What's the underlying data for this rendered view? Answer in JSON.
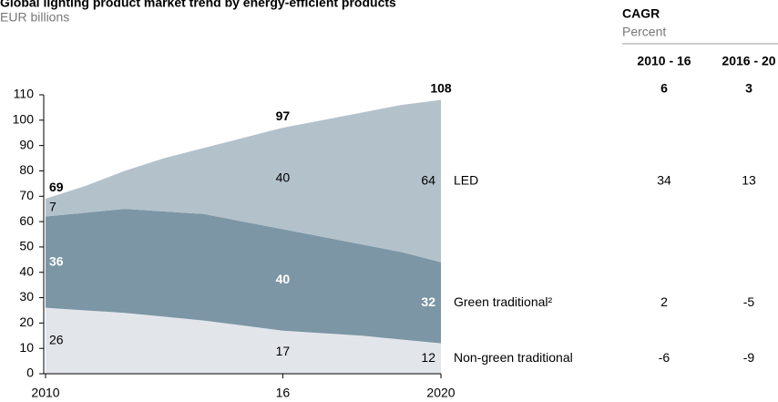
{
  "chart_data": {
    "type": "stacked_area",
    "title": "Global lighting product market trend by energy-efficient products",
    "subtitle": "EUR billions",
    "x": [
      2010,
      2011,
      2012,
      2013,
      2014,
      2015,
      2016,
      2017,
      2018,
      2019,
      2020
    ],
    "xlim": [
      2010,
      2020
    ],
    "xticks": [
      2010,
      {
        "value": 2016,
        "label": "16"
      },
      2020
    ],
    "ylim": [
      0,
      110
    ],
    "yticks": [
      0,
      10,
      20,
      30,
      40,
      50,
      60,
      70,
      80,
      90,
      100,
      110
    ],
    "series": [
      {
        "name": "Non-green traditional",
        "color": "#e2e6eb",
        "values": [
          26,
          25,
          24,
          22.5,
          21,
          19,
          17,
          16,
          15,
          13.5,
          12
        ]
      },
      {
        "name": "Green traditional²",
        "color": "#7c96a5",
        "values": [
          36,
          38.5,
          41,
          41.5,
          42,
          41,
          40,
          38,
          36,
          34.5,
          32
        ]
      },
      {
        "name": "LED",
        "color": "#b3c1cb",
        "values": [
          7,
          10.5,
          15,
          21,
          26,
          33,
          40,
          46,
          52,
          58,
          64
        ]
      }
    ],
    "labeled_points": [
      0,
      6,
      10
    ],
    "totals": [
      69,
      97,
      108
    ],
    "cagr": {
      "title": "CAGR",
      "unit": "Percent",
      "columns": [
        "2010 - 16",
        "2016 - 20"
      ],
      "total": [
        6,
        3
      ],
      "rows": [
        [
          -6,
          -9
        ],
        [
          2,
          -5
        ],
        [
          34,
          13
        ]
      ]
    }
  }
}
